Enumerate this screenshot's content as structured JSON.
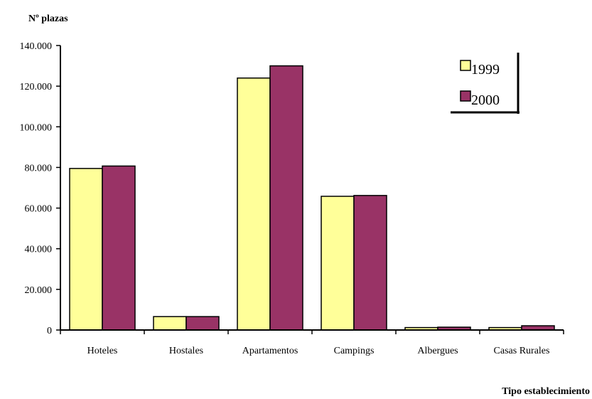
{
  "chart_data": {
    "type": "bar",
    "title": "",
    "ylabel": "Nº plazas",
    "xlabel": "Tipo establecimiento",
    "categories": [
      "Hoteles",
      "Hostales",
      "Apartamentos",
      "Campings",
      "Albergues",
      "Casas Rurales"
    ],
    "series": [
      {
        "name": "1999",
        "color": "#ffff99",
        "values": [
          79500,
          6600,
          124000,
          65800,
          1200,
          1200
        ]
      },
      {
        "name": "2000",
        "color": "#993366",
        "values": [
          80700,
          6600,
          130000,
          66200,
          1400,
          2100
        ]
      }
    ],
    "ylim": [
      0,
      140000
    ],
    "yticks": [
      "0",
      "20.000",
      "40.000",
      "60.000",
      "80.000",
      "100.000",
      "120.000",
      "140.000"
    ],
    "grid": false,
    "legend_position": "top-right"
  }
}
